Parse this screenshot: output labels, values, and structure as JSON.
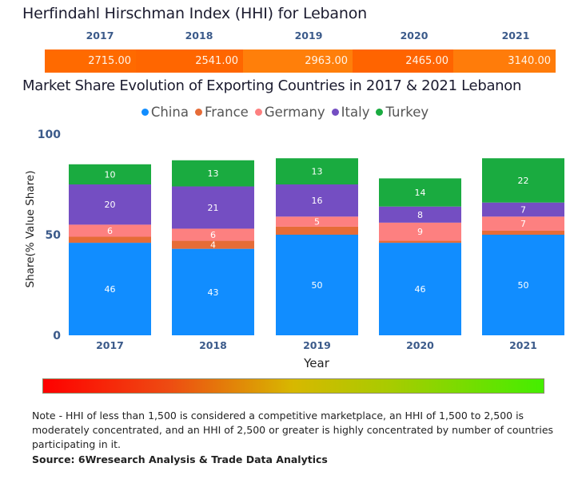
{
  "hhi": {
    "title": "Herfindahl Hirschman Index (HHI) for Lebanon",
    "years": [
      "2017",
      "2018",
      "2019",
      "2020",
      "2021"
    ],
    "values": [
      "2715.00",
      "2541.00",
      "2963.00",
      "2465.00",
      "3140.00"
    ],
    "cell_colors": [
      "#ff6a00",
      "#ff6600",
      "#ff7f0a",
      "#ff6400",
      "#ff7c0a"
    ]
  },
  "chart_data": {
    "type": "bar",
    "stacked": true,
    "title": "Market Share Evolution of Exporting Countries in 2017 & 2021 Lebanon",
    "xlabel": "Year",
    "ylabel": "Share(% Value Share)",
    "categories": [
      "2017",
      "2018",
      "2019",
      "2020",
      "2021"
    ],
    "ylim": [
      0,
      100
    ],
    "yticks": [
      "0",
      "50",
      "100"
    ],
    "grid": false,
    "legend_position": "top-center",
    "series": [
      {
        "name": "China",
        "color": "#118dff",
        "values": [
          46,
          43,
          50,
          46,
          50
        ],
        "labels": [
          "46",
          "43",
          "50",
          "46",
          "50"
        ]
      },
      {
        "name": "France",
        "color": "#e66c37",
        "values": [
          3,
          4,
          4,
          1,
          2
        ],
        "labels": [
          "",
          "4",
          "",
          "",
          ""
        ]
      },
      {
        "name": "Germany",
        "color": "#fd8080",
        "values": [
          6,
          6,
          5,
          9,
          7
        ],
        "labels": [
          "6",
          "6",
          "5",
          "9",
          "7"
        ]
      },
      {
        "name": "Italy",
        "color": "#744ec2",
        "values": [
          20,
          21,
          16,
          8,
          7
        ],
        "labels": [
          "20",
          "21",
          "16",
          "8",
          "7"
        ]
      },
      {
        "name": "Turkey",
        "color": "#1aab40",
        "values": [
          10,
          13,
          13,
          14,
          22
        ],
        "labels": [
          "10",
          "13",
          "13",
          "14",
          "22"
        ]
      }
    ]
  },
  "note": "Note - HHI of less than 1,500 is considered a competitive marketplace, an HHI of 1,500 to 2,500 is moderately concentrated, and an HHI of 2,500 or greater is highly concentrated by number of countries participating in it.",
  "source": "Source: 6Wresearch Analysis & Trade Data Analytics"
}
